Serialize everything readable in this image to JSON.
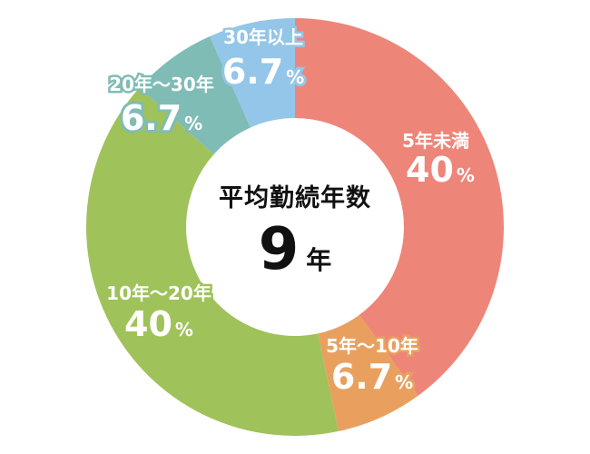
{
  "chart_data": {
    "type": "pie",
    "donut": true,
    "center_title": "平均勤続年数",
    "center_value": "9",
    "center_unit": "年",
    "slices": [
      {
        "label": "5年未満",
        "value": 40,
        "value_text": "40",
        "unit": "%",
        "color": "#ee8579"
      },
      {
        "label": "5年～10年",
        "value": 6.7,
        "value_text": "6.7",
        "unit": "%",
        "color": "#e9a05f"
      },
      {
        "label": "10年～20年",
        "value": 40,
        "value_text": "40",
        "unit": "%",
        "color": "#9fc25b"
      },
      {
        "label": "20年～30年",
        "value": 6.7,
        "value_text": "6.7",
        "unit": "%",
        "color": "#7fbcb5"
      },
      {
        "label": "30年以上",
        "value": 6.7,
        "value_text": "6.7",
        "unit": "%",
        "color": "#93c6e8"
      }
    ]
  }
}
